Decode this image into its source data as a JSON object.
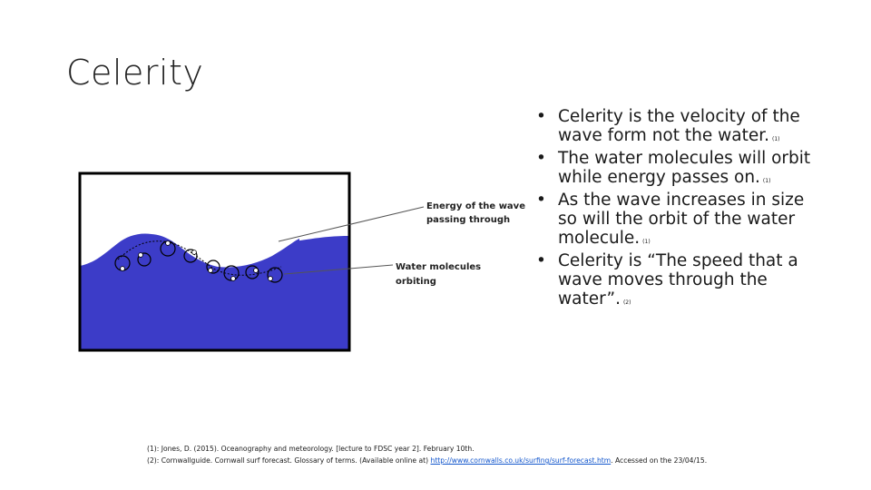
{
  "slide": {
    "title": "Celerity"
  },
  "diagram": {
    "labels": {
      "energy_line1": "Energy of the wave",
      "energy_line2": "passing through",
      "molecules_line1": "Water molecules",
      "molecules_line2": "orbiting"
    },
    "colors": {
      "water": "#3c3cc8",
      "frame": "#000000"
    }
  },
  "bullets": [
    {
      "text": "Celerity is the velocity of the wave form not the water.",
      "ref": "(1)"
    },
    {
      "text": "The water molecules will orbit while energy passes on.",
      "ref": "(1)"
    },
    {
      "text": "As the wave increases in size so will the orbit of the water molecule.",
      "ref": "(1)"
    },
    {
      "text": "Celerity is “The speed that a wave moves through the water”.",
      "ref": "(2)"
    }
  ],
  "footer": {
    "ref1": "(1): Jones, D. (2015). Oceanography and meteorology. [lecture to FDSC year 2]. February 10th.",
    "ref2_prefix": "(2): Cornwallguide. Cornwall surf forecast. Glossary of terms. (Available online at)",
    "ref2_link": "http://www.cornwalls.co.uk/surfing/surf-forecast.htm",
    "ref2_suffix": ". Accessed on the 23/04/15."
  }
}
